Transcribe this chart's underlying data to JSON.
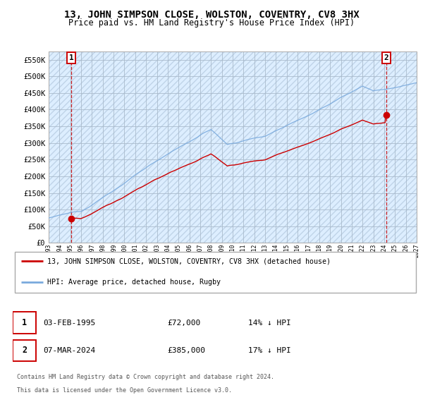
{
  "title": "13, JOHN SIMPSON CLOSE, WOLSTON, COVENTRY, CV8 3HX",
  "subtitle": "Price paid vs. HM Land Registry's House Price Index (HPI)",
  "ylim": [
    0,
    575000
  ],
  "yticks": [
    0,
    50000,
    100000,
    150000,
    200000,
    250000,
    300000,
    350000,
    400000,
    450000,
    500000,
    550000
  ],
  "ytick_labels": [
    "£0",
    "£50K",
    "£100K",
    "£150K",
    "£200K",
    "£250K",
    "£300K",
    "£350K",
    "£400K",
    "£450K",
    "£500K",
    "£550K"
  ],
  "background_color": "#ffffff",
  "plot_bg_color": "#ddeeff",
  "grid_color": "#aabbcc",
  "sale1_year": 1995.09,
  "sale1_price": 72000,
  "sale2_year": 2024.18,
  "sale2_price": 385000,
  "sale_color": "#cc0000",
  "hpi_color": "#7aaadd",
  "legend_label1": "13, JOHN SIMPSON CLOSE, WOLSTON, COVENTRY, CV8 3HX (detached house)",
  "legend_label2": "HPI: Average price, detached house, Rugby",
  "annotation1_label": "1",
  "annotation2_label": "2",
  "footer3": "Contains HM Land Registry data © Crown copyright and database right 2024.",
  "footer4": "This data is licensed under the Open Government Licence v3.0.",
  "title_fontsize": 10,
  "subtitle_fontsize": 8.5,
  "tick_fontsize": 7.5
}
